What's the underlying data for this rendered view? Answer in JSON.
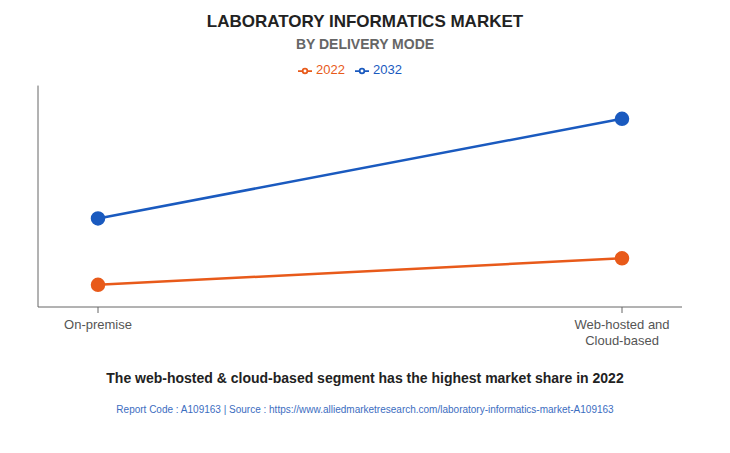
{
  "chart_data": {
    "type": "line",
    "title": "LABORATORY INFORMATICS MARKET",
    "subtitle": "BY DELIVERY MODE",
    "categories": [
      "On-premise",
      "Web-hosted and\nCloud-based"
    ],
    "series": [
      {
        "name": "2022",
        "color": "#e85a1a",
        "values": [
          1,
          2.2
        ],
        "marker": "circle"
      },
      {
        "name": "2032",
        "color": "#1a5abf",
        "values": [
          4,
          8.5
        ],
        "marker": "circle"
      }
    ],
    "ylim": [
      0,
      10
    ],
    "yticks": [],
    "grid": false,
    "legend": "top",
    "tick_labels": "x",
    "annotations": [
      "The web-hosted & cloud-based segment has the highest market share in 2022",
      "Report Code : A109163  |  Source : https://www.alliedmarketresearch.com/laboratory-informatics-market-A109163"
    ]
  }
}
